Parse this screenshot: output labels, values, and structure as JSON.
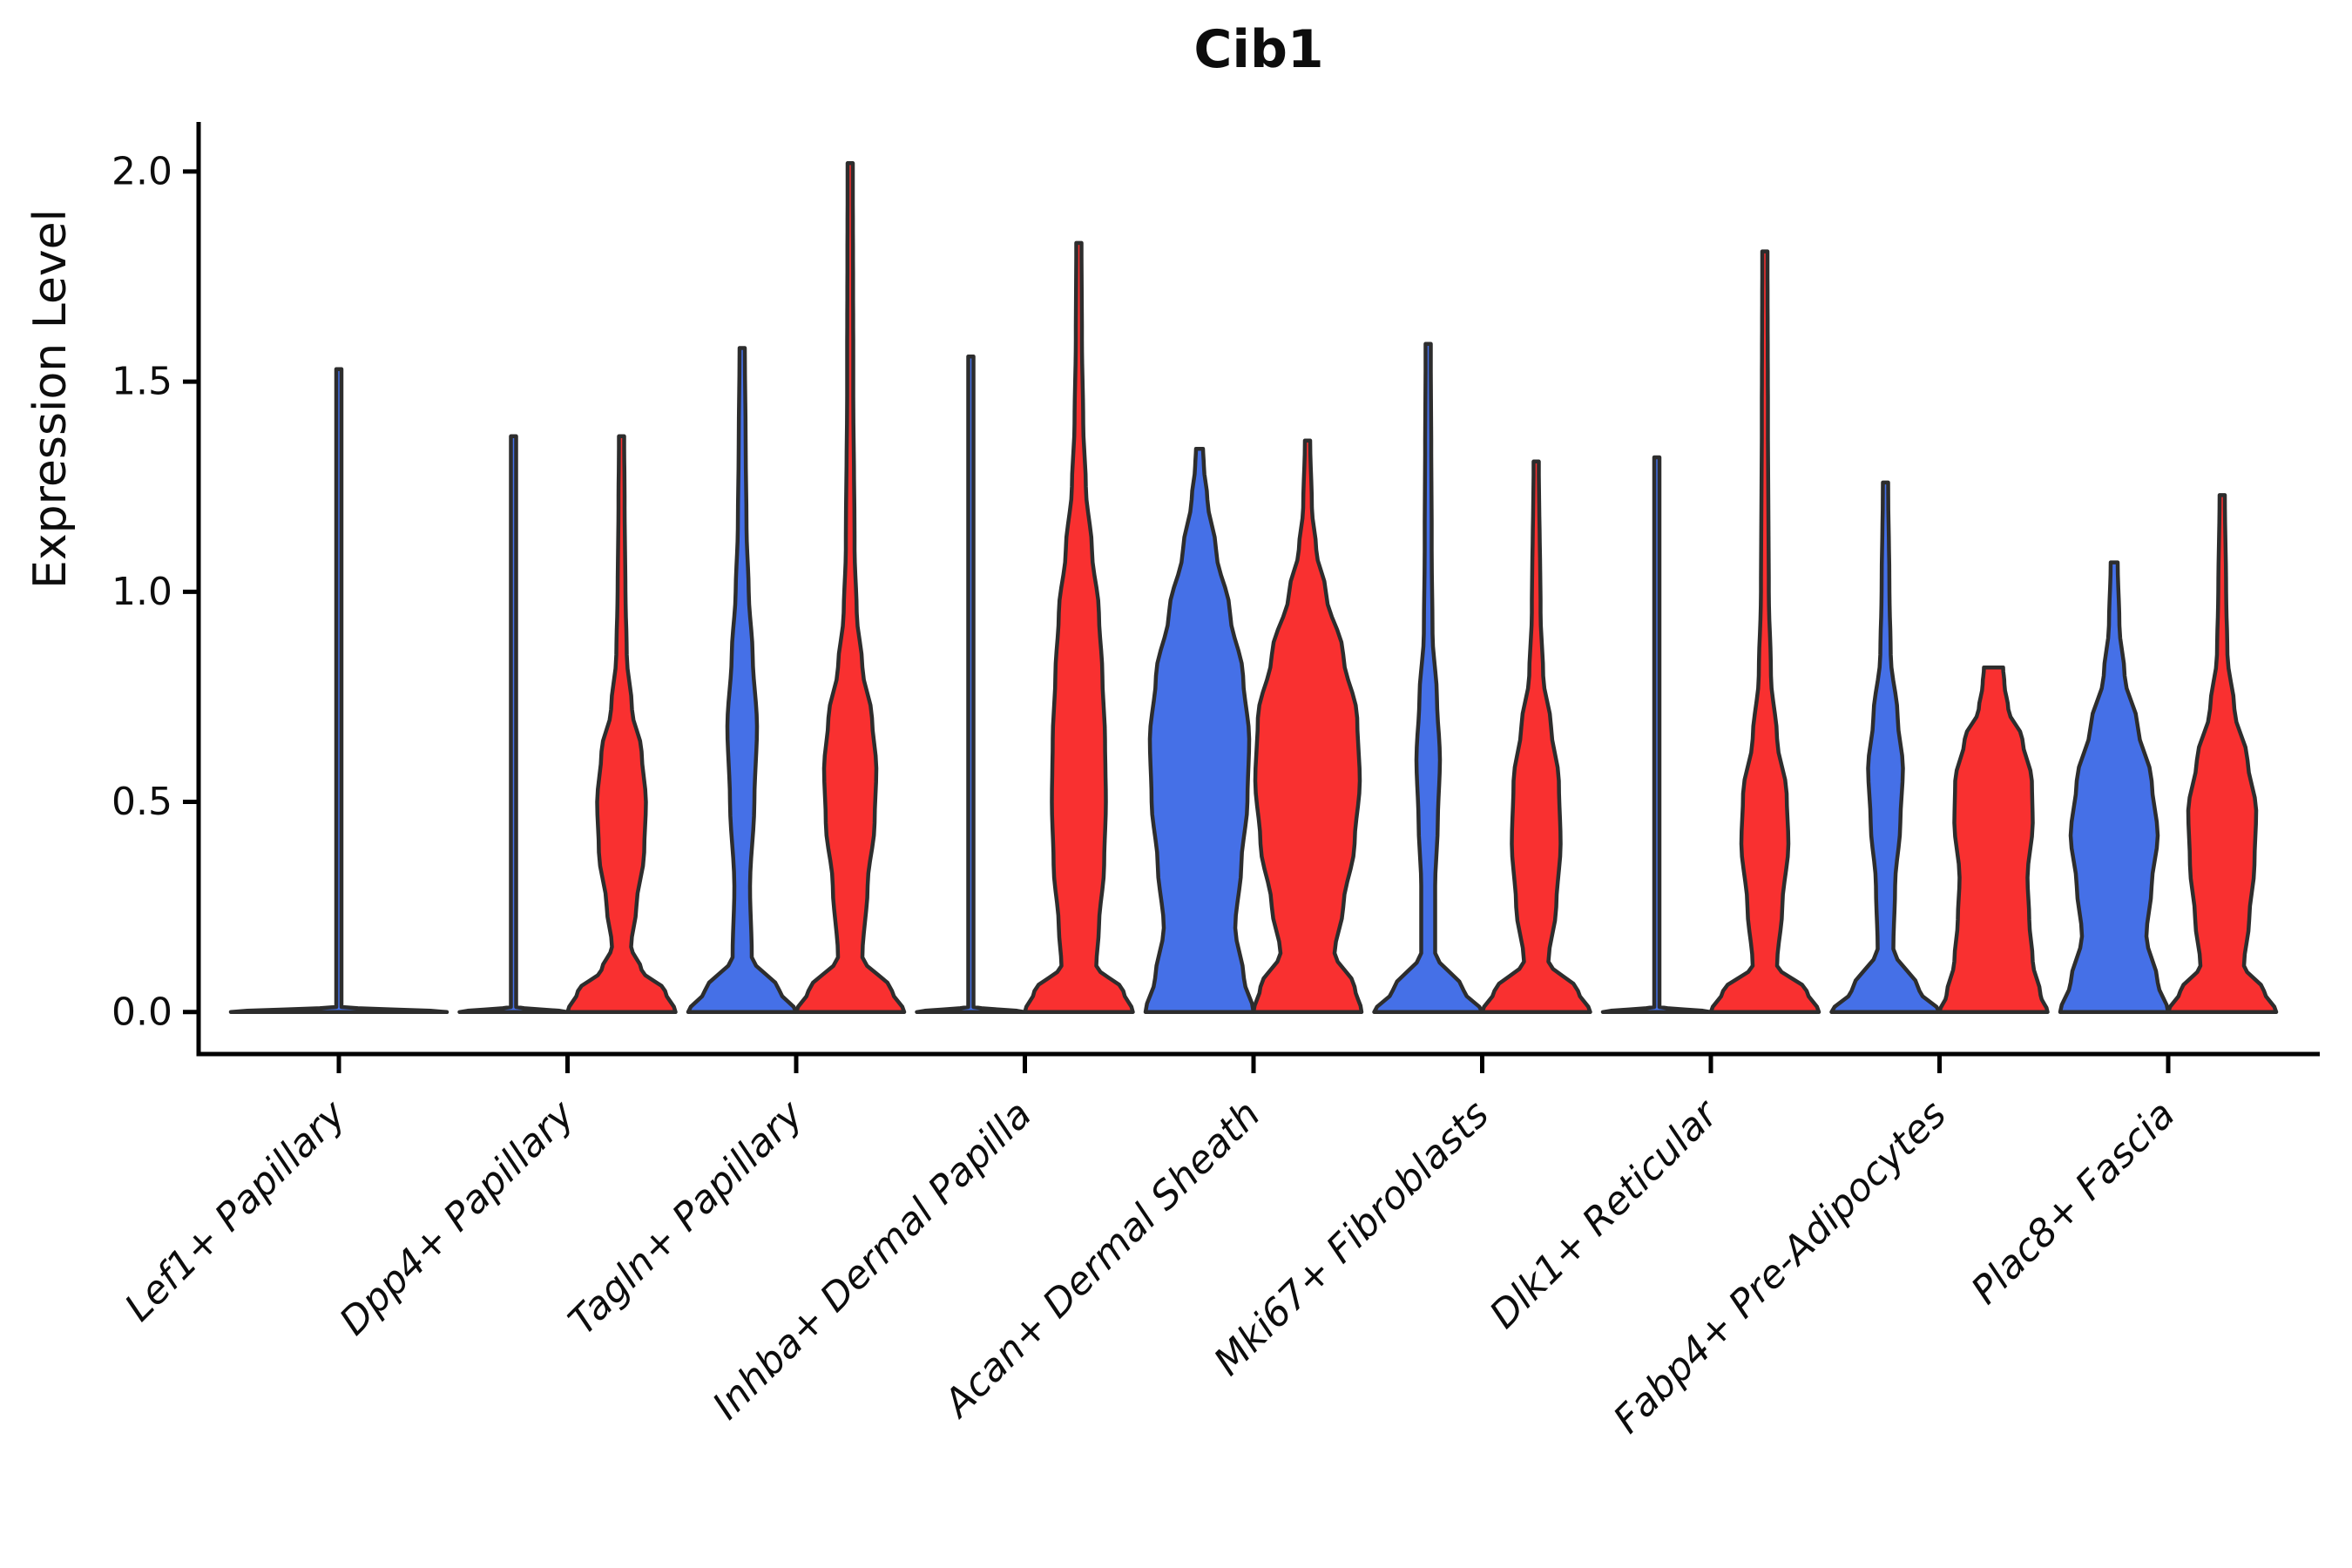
{
  "chart_data": {
    "type": "violin",
    "title": "Cib1",
    "ylabel": "Expression Level",
    "xlabel": "",
    "ylim": [
      -0.1,
      2.118
    ],
    "grid": false,
    "legend": null,
    "yticks": [
      {
        "value": 0.0,
        "label": "0.0"
      },
      {
        "value": 0.5,
        "label": "0.5"
      },
      {
        "value": 1.0,
        "label": "1.0"
      },
      {
        "value": 1.5,
        "label": "1.5"
      },
      {
        "value": 2.0,
        "label": "2.0"
      }
    ],
    "colors": {
      "blue": "#4570E7",
      "red": "#F93030",
      "outline": "#2D2D2D",
      "axis": "#000000",
      "text": "#0d0d0d"
    },
    "categories": [
      {
        "label": "Lef1+ Papillary",
        "violins": [
          {
            "id": "single",
            "color": "blue",
            "side": "center",
            "peak": 1.53,
            "flat_top": false,
            "profile": [
              [
                0,
                124
              ],
              [
                0.012,
                3
              ],
              [
                1.53,
                3
              ]
            ]
          }
        ]
      },
      {
        "label": "Dpp4+ Papillary",
        "violins": [
          {
            "id": "blue",
            "color": "blue",
            "side": "left",
            "peak": 1.37,
            "flat_top": false,
            "profile": [
              [
                0,
                62
              ],
              [
                0.012,
                3
              ],
              [
                1.37,
                3
              ]
            ]
          },
          {
            "id": "red",
            "color": "red",
            "side": "right",
            "peak": 1.37,
            "flat_top": false,
            "profile": [
              [
                0,
                62
              ],
              [
                0.05,
                50
              ],
              [
                0.1,
                23
              ],
              [
                0.155,
                11
              ],
              [
                0.25,
                17
              ],
              [
                0.38,
                26
              ],
              [
                0.5,
                28
              ],
              [
                0.62,
                23
              ],
              [
                0.72,
                12
              ],
              [
                0.85,
                6
              ],
              [
                1.0,
                4.5
              ],
              [
                1.2,
                3.5
              ],
              [
                1.37,
                3
              ]
            ]
          }
        ]
      },
      {
        "label": "Tagln+ Papillary",
        "violins": [
          {
            "id": "blue",
            "color": "blue",
            "side": "left",
            "peak": 1.58,
            "flat_top": false,
            "profile": [
              [
                0,
                62
              ],
              [
                0.05,
                43
              ],
              [
                0.13,
                11
              ],
              [
                0.3,
                9
              ],
              [
                0.5,
                14
              ],
              [
                0.68,
                17
              ],
              [
                0.85,
                12
              ],
              [
                1.0,
                7.5
              ],
              [
                1.15,
                5
              ],
              [
                1.35,
                4
              ],
              [
                1.58,
                3
              ]
            ]
          },
          {
            "id": "red",
            "color": "red",
            "side": "right",
            "peak": 2.02,
            "flat_top": false,
            "profile": [
              [
                0,
                62
              ],
              [
                0.05,
                48
              ],
              [
                0.13,
                14
              ],
              [
                0.3,
                20
              ],
              [
                0.45,
                28
              ],
              [
                0.58,
                30
              ],
              [
                0.7,
                25
              ],
              [
                0.82,
                14
              ],
              [
                0.95,
                7.5
              ],
              [
                1.1,
                5
              ],
              [
                1.5,
                3.5
              ],
              [
                2.02,
                3
              ]
            ]
          }
        ]
      },
      {
        "label": "Inhba+ Dermal Papilla",
        "violins": [
          {
            "id": "blue",
            "color": "blue",
            "side": "left",
            "peak": 1.56,
            "flat_top": false,
            "profile": [
              [
                0,
                62
              ],
              [
                0.012,
                3
              ],
              [
                1.56,
                3
              ]
            ]
          },
          {
            "id": "red",
            "color": "red",
            "side": "right",
            "peak": 1.83,
            "flat_top": false,
            "profile": [
              [
                0,
                62
              ],
              [
                0.05,
                51
              ],
              [
                0.11,
                20
              ],
              [
                0.2,
                23
              ],
              [
                0.35,
                29
              ],
              [
                0.5,
                31
              ],
              [
                0.65,
                30
              ],
              [
                0.8,
                27
              ],
              [
                0.95,
                23
              ],
              [
                1.1,
                15
              ],
              [
                1.25,
                8
              ],
              [
                1.4,
                5
              ],
              [
                1.6,
                3.5
              ],
              [
                1.83,
                3
              ]
            ]
          }
        ]
      },
      {
        "label": "Acan+ Dermal Sheath",
        "violins": [
          {
            "id": "blue",
            "color": "blue",
            "side": "left",
            "peak": 1.34,
            "flat_top": false,
            "profile": [
              [
                0,
                62
              ],
              [
                0.08,
                51
              ],
              [
                0.2,
                41
              ],
              [
                0.35,
                48
              ],
              [
                0.5,
                55
              ],
              [
                0.65,
                57
              ],
              [
                0.8,
                50
              ],
              [
                0.95,
                35
              ],
              [
                1.1,
                19
              ],
              [
                1.22,
                9
              ],
              [
                1.3,
                5
              ],
              [
                1.34,
                4
              ]
            ]
          },
          {
            "id": "red",
            "color": "red",
            "side": "right",
            "peak": 1.36,
            "flat_top": false,
            "profile": [
              [
                0,
                62
              ],
              [
                0.06,
                54
              ],
              [
                0.14,
                31
              ],
              [
                0.25,
                41
              ],
              [
                0.4,
                54
              ],
              [
                0.55,
                60
              ],
              [
                0.7,
                57
              ],
              [
                0.85,
                41
              ],
              [
                1.0,
                21
              ],
              [
                1.1,
                10
              ],
              [
                1.2,
                5
              ],
              [
                1.36,
                3
              ]
            ]
          }
        ]
      },
      {
        "label": "Mki67+ Fibroblasts",
        "violins": [
          {
            "id": "blue",
            "color": "blue",
            "side": "left",
            "peak": 1.59,
            "flat_top": false,
            "profile": [
              [
                0,
                62
              ],
              [
                0.05,
                41
              ],
              [
                0.14,
                8
              ],
              [
                0.3,
                8
              ],
              [
                0.45,
                11
              ],
              [
                0.6,
                13.5
              ],
              [
                0.75,
                10
              ],
              [
                0.9,
                5
              ],
              [
                1.1,
                4
              ],
              [
                1.59,
                3
              ]
            ]
          },
          {
            "id": "red",
            "color": "red",
            "side": "right",
            "peak": 1.31,
            "flat_top": false,
            "profile": [
              [
                0,
                62
              ],
              [
                0.05,
                48
              ],
              [
                0.12,
                14
              ],
              [
                0.25,
                23
              ],
              [
                0.4,
                28
              ],
              [
                0.55,
                26
              ],
              [
                0.68,
                17
              ],
              [
                0.8,
                8
              ],
              [
                0.95,
                5
              ],
              [
                1.31,
                3
              ]
            ]
          }
        ]
      },
      {
        "label": "Dlk1+ Reticular",
        "violins": [
          {
            "id": "blue",
            "color": "blue",
            "side": "left",
            "peak": 1.32,
            "flat_top": false,
            "profile": [
              [
                0,
                62
              ],
              [
                0.012,
                3
              ],
              [
                1.32,
                3
              ]
            ]
          },
          {
            "id": "red",
            "color": "red",
            "side": "right",
            "peak": 1.81,
            "flat_top": false,
            "profile": [
              [
                0,
                62
              ],
              [
                0.05,
                48
              ],
              [
                0.11,
                14
              ],
              [
                0.25,
                20
              ],
              [
                0.4,
                27
              ],
              [
                0.52,
                25
              ],
              [
                0.65,
                14
              ],
              [
                0.8,
                7
              ],
              [
                1.0,
                4.5
              ],
              [
                1.4,
                3.5
              ],
              [
                1.81,
                3
              ]
            ]
          }
        ]
      },
      {
        "label": "Fabp4+ Pre-Adipocytes",
        "violins": [
          {
            "id": "blue",
            "color": "blue",
            "side": "left",
            "peak": 1.26,
            "flat_top": false,
            "profile": [
              [
                0,
                62
              ],
              [
                0.05,
                39
              ],
              [
                0.15,
                9
              ],
              [
                0.3,
                11
              ],
              [
                0.45,
                17
              ],
              [
                0.58,
                20
              ],
              [
                0.7,
                14
              ],
              [
                0.85,
                6
              ],
              [
                1.0,
                4.5
              ],
              [
                1.26,
                3
              ]
            ]
          },
          {
            "id": "red",
            "color": "red",
            "side": "right",
            "peak": 0.82,
            "flat_top": true,
            "profile": [
              [
                0,
                62
              ],
              [
                0.04,
                54
              ],
              [
                0.12,
                45
              ],
              [
                0.22,
                41
              ],
              [
                0.32,
                39
              ],
              [
                0.45,
                45
              ],
              [
                0.55,
                44
              ],
              [
                0.65,
                33
              ],
              [
                0.72,
                17
              ],
              [
                0.78,
                12.5
              ],
              [
                0.82,
                11
              ]
            ]
          }
        ]
      },
      {
        "label": "Plac8+ Fascia",
        "violins": [
          {
            "id": "blue",
            "color": "blue",
            "side": "left",
            "peak": 1.07,
            "flat_top": false,
            "profile": [
              [
                0,
                62
              ],
              [
                0.07,
                50
              ],
              [
                0.18,
                37
              ],
              [
                0.3,
                43
              ],
              [
                0.42,
                50
              ],
              [
                0.55,
                43
              ],
              [
                0.68,
                27
              ],
              [
                0.8,
                12
              ],
              [
                0.92,
                6
              ],
              [
                1.07,
                4
              ]
            ]
          },
          {
            "id": "red",
            "color": "red",
            "side": "right",
            "peak": 1.23,
            "flat_top": false,
            "profile": [
              [
                0,
                62
              ],
              [
                0.05,
                48
              ],
              [
                0.11,
                25
              ],
              [
                0.22,
                31
              ],
              [
                0.35,
                37
              ],
              [
                0.48,
                39
              ],
              [
                0.6,
                29
              ],
              [
                0.72,
                14
              ],
              [
                0.85,
                6
              ],
              [
                1.0,
                4.5
              ],
              [
                1.23,
                3
              ]
            ]
          }
        ]
      }
    ]
  }
}
